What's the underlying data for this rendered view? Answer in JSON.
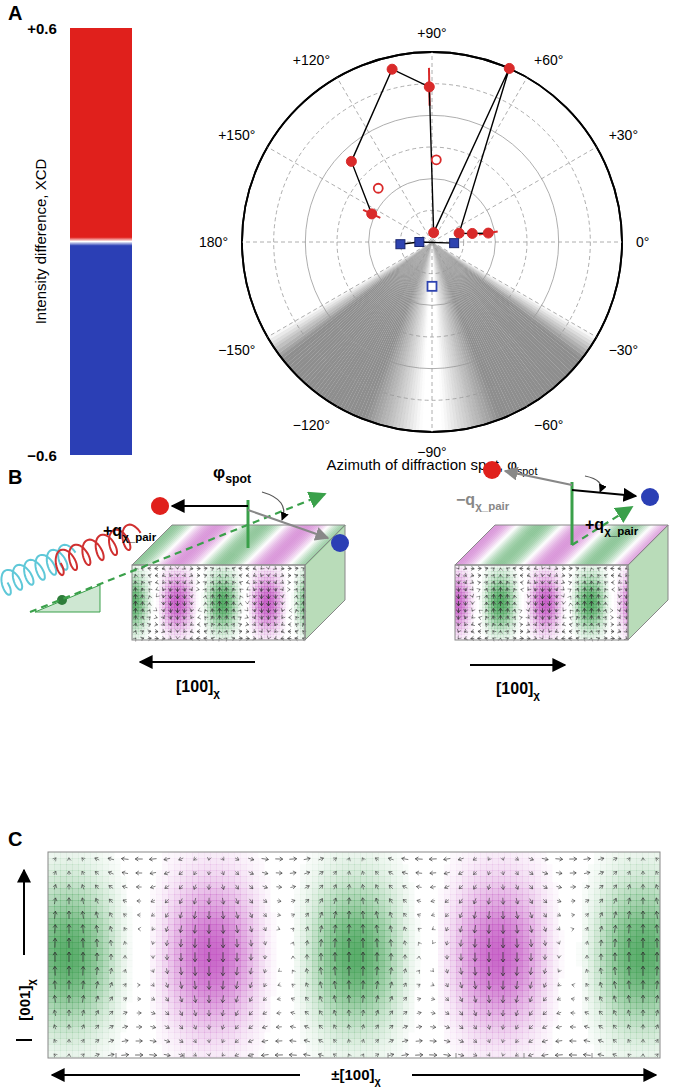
{
  "chart_data": {
    "type": "polar_scatter",
    "panel_label": "A",
    "x_label": "Azimuth of diffraction spot, φ",
    "x_label_subscript": "spot",
    "angle_ticks": [
      {
        "value": 90,
        "label": "+90°"
      },
      {
        "value": 60,
        "label": "+60°"
      },
      {
        "value": 30,
        "label": "+30°"
      },
      {
        "value": 0,
        "label": "0°"
      },
      {
        "value": -30,
        "label": "−30°"
      },
      {
        "value": -60,
        "label": "−60°"
      },
      {
        "value": -90,
        "label": "−90°"
      },
      {
        "value": -120,
        "label": "−120°"
      },
      {
        "value": -150,
        "label": "−150°"
      },
      {
        "value": 180,
        "label": "180°"
      },
      {
        "value": 150,
        "label": "+150°"
      },
      {
        "value": 120,
        "label": "+120°"
      }
    ],
    "rlim": [
      0,
      0.6
    ],
    "rticks": [
      0.1,
      0.2,
      0.3,
      0.4,
      0.5,
      0.6
    ],
    "tick_labels": "x",
    "grid": true,
    "shaded_azimuth": [
      -150,
      -30
    ],
    "series": [
      {
        "color": "#d92a2a",
        "marker": "circle",
        "line_style": "solid",
        "azimuth": [
          155,
          135,
          103,
          91,
          80,
          66,
          18,
          12,
          9
        ],
        "r": [
          0.21,
          0.36,
          0.56,
          0.49,
          0.03,
          0.6,
          0.09,
          0.13,
          0.18
        ],
        "r_error": [
          0.03,
          null,
          null,
          0.06,
          null,
          null,
          null,
          null,
          0.03
        ]
      },
      {
        "color": "#d92a2a",
        "marker": "circle_open",
        "line_style": "none",
        "azimuth": [
          87,
          135
        ],
        "r": [
          0.26,
          0.24
        ],
        "r_error": [
          null,
          null
        ]
      },
      {
        "color": "#2e43b0",
        "marker": "square",
        "line_style": "solid",
        "azimuth": [
          184,
          180,
          -3
        ],
        "r": [
          0.1,
          0.04,
          0.07
        ],
        "r_error": [
          null,
          null,
          null
        ]
      },
      {
        "color": "#2e43b0",
        "marker": "square_open",
        "line_style": "none",
        "azimuth": [
          -90
        ],
        "r": [
          0.14
        ],
        "r_error": [
          null
        ]
      }
    ],
    "colorbar": {
      "label": "Intensity difference, XCD",
      "range": [
        -0.6,
        0.6
      ],
      "ticks": [
        {
          "value": 0.6,
          "label": "+0.6"
        },
        {
          "value": -0.6,
          "label": "−0.6"
        }
      ],
      "colors": [
        "#e0201c",
        "#ffffff",
        "#2b3fb5"
      ]
    }
  },
  "panel_B": {
    "label": "B",
    "phi_spot": {
      "text": "φ",
      "subscript": "spot"
    },
    "q_pair_plus": {
      "text": "+q",
      "subscript": "χ_pair"
    },
    "q_pair_minus": {
      "text": "−q",
      "subscript": "χ_pair"
    },
    "direction": {
      "text": "[100]",
      "subscript": "χ"
    }
  },
  "panel_C": {
    "label": "C",
    "vertical_axis": {
      "text": "[001]",
      "subscript": "χ"
    },
    "horizontal_axis": {
      "text": "±[100]",
      "subscript": "χ"
    }
  }
}
